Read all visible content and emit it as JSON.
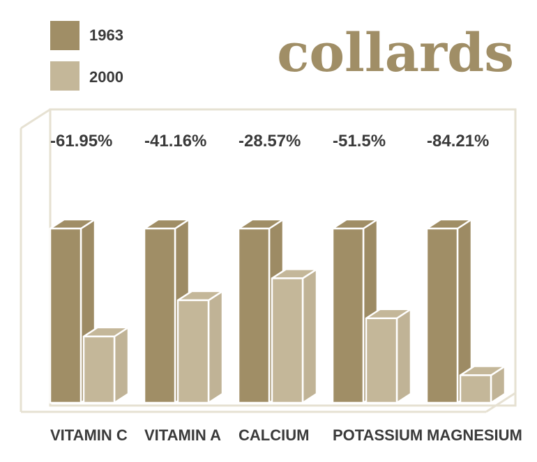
{
  "chart_data": {
    "type": "bar",
    "title": "collards",
    "categories": [
      "VITAMIN C",
      "VITAMIN A",
      "CALCIUM",
      "POTASSIUM",
      "MAGNESIUM"
    ],
    "series": [
      {
        "name": "1963",
        "values": [
          100,
          100,
          100,
          100,
          100
        ]
      },
      {
        "name": "2000",
        "values": [
          38.05,
          58.84,
          71.43,
          48.5,
          15.79
        ]
      }
    ],
    "annotations": [
      "-61.95%",
      "-41.16%",
      "-28.57%",
      "-51.5%",
      "-84.21%"
    ],
    "ylim": [
      0,
      100
    ],
    "grid": false,
    "legend_position": "top-left",
    "colors": {
      "series_1963": "#a08e66",
      "series_2000": "#c4b799",
      "frame": "#e6e1d2",
      "text": "#3a3a3a",
      "title": "#a08e66"
    }
  }
}
